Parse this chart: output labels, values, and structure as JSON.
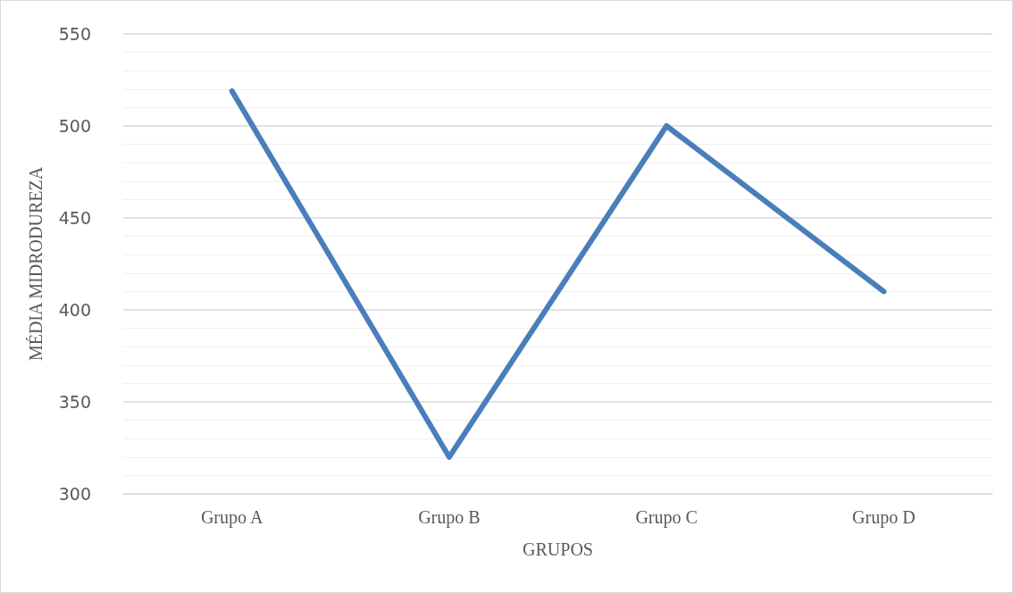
{
  "chart_data": {
    "type": "line",
    "xlabel": "GRUPOS",
    "ylabel": "MÉDIA MIDRODUREZA",
    "categories": [
      "Grupo A",
      "Grupo B",
      "Grupo C",
      "Grupo D"
    ],
    "series": [
      {
        "color": "#4a7ebb",
        "values": [
          519,
          320,
          500,
          410
        ]
      }
    ],
    "ylim": [
      300,
      550
    ],
    "yticks": [
      300,
      350,
      400,
      450,
      500,
      550
    ],
    "grid": "y",
    "marker": "none",
    "line_style": "solid"
  }
}
